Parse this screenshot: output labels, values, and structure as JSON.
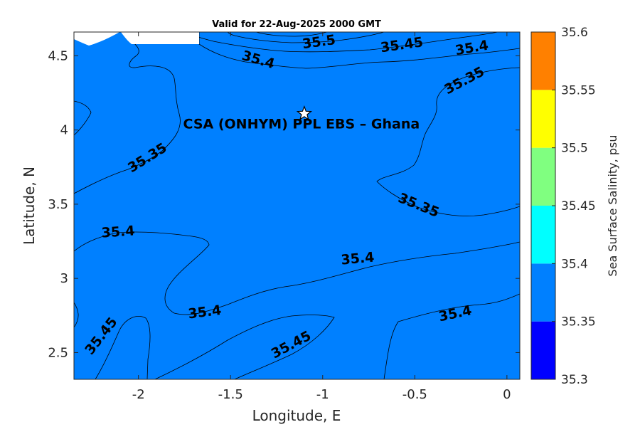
{
  "chart_data": {
    "type": "contour",
    "title": "Valid for 22-Aug-2025 2000 GMT",
    "xlabel": "Longitude, E",
    "ylabel": "Latitude, N",
    "xlim": [
      -2.35,
      0.07
    ],
    "ylim": [
      2.32,
      4.66
    ],
    "xticks": [
      {
        "v": -2,
        "label": "-2"
      },
      {
        "v": -1.5,
        "label": "-1.5"
      },
      {
        "v": -1,
        "label": "-1"
      },
      {
        "v": -0.5,
        "label": "-0.5"
      },
      {
        "v": 0,
        "label": "0"
      }
    ],
    "yticks": [
      {
        "v": 2.5,
        "label": "2.5"
      },
      {
        "v": 3,
        "label": "3"
      },
      {
        "v": 3.5,
        "label": "3.5"
      },
      {
        "v": 4,
        "label": "4"
      },
      {
        "v": 4.5,
        "label": "4.5"
      }
    ],
    "colorbar": {
      "label": "Sea Surface Salinity, psu",
      "levels": [
        35.3,
        35.35,
        35.4,
        35.45,
        35.5,
        35.55,
        35.6
      ],
      "level_labels": [
        "35.3",
        "35.35",
        "35.4",
        "35.45",
        "35.5",
        "35.55",
        "35.6"
      ],
      "colors": [
        "#0000ff",
        "#0080ff",
        "#00ffff",
        "#80ff80",
        "#ffff00",
        "#ff8000"
      ]
    },
    "contour_labels": [
      {
        "text": "35.5",
        "lon": -1.02,
        "lat": 4.59,
        "rot": -8
      },
      {
        "text": "35.45",
        "lon": -0.57,
        "lat": 4.57,
        "rot": -8
      },
      {
        "text": "35.4",
        "lon": -0.19,
        "lat": 4.55,
        "rot": -10
      },
      {
        "text": "35.4",
        "lon": -1.35,
        "lat": 4.47,
        "rot": 16
      },
      {
        "text": "35.35",
        "lon": -0.23,
        "lat": 4.33,
        "rot": -28
      },
      {
        "text": "35.35",
        "lon": -1.95,
        "lat": 3.81,
        "rot": -32
      },
      {
        "text": "35.35",
        "lon": -0.48,
        "lat": 3.49,
        "rot": 22
      },
      {
        "text": "35.4",
        "lon": -2.11,
        "lat": 3.31,
        "rot": -4
      },
      {
        "text": "35.4",
        "lon": -0.81,
        "lat": 3.13,
        "rot": -5
      },
      {
        "text": "35.4",
        "lon": -1.64,
        "lat": 2.77,
        "rot": -7
      },
      {
        "text": "35.4",
        "lon": -0.28,
        "lat": 2.76,
        "rot": -12
      },
      {
        "text": "35.45",
        "lon": -2.2,
        "lat": 2.61,
        "rot": -52
      },
      {
        "text": "35.45",
        "lon": -1.17,
        "lat": 2.55,
        "rot": -28
      }
    ],
    "annotations": [
      {
        "text": "CSA (ONHYM) PPL EBS  – Ghana",
        "lon": -1.1,
        "lat": 4.11,
        "marker": "star"
      }
    ]
  }
}
